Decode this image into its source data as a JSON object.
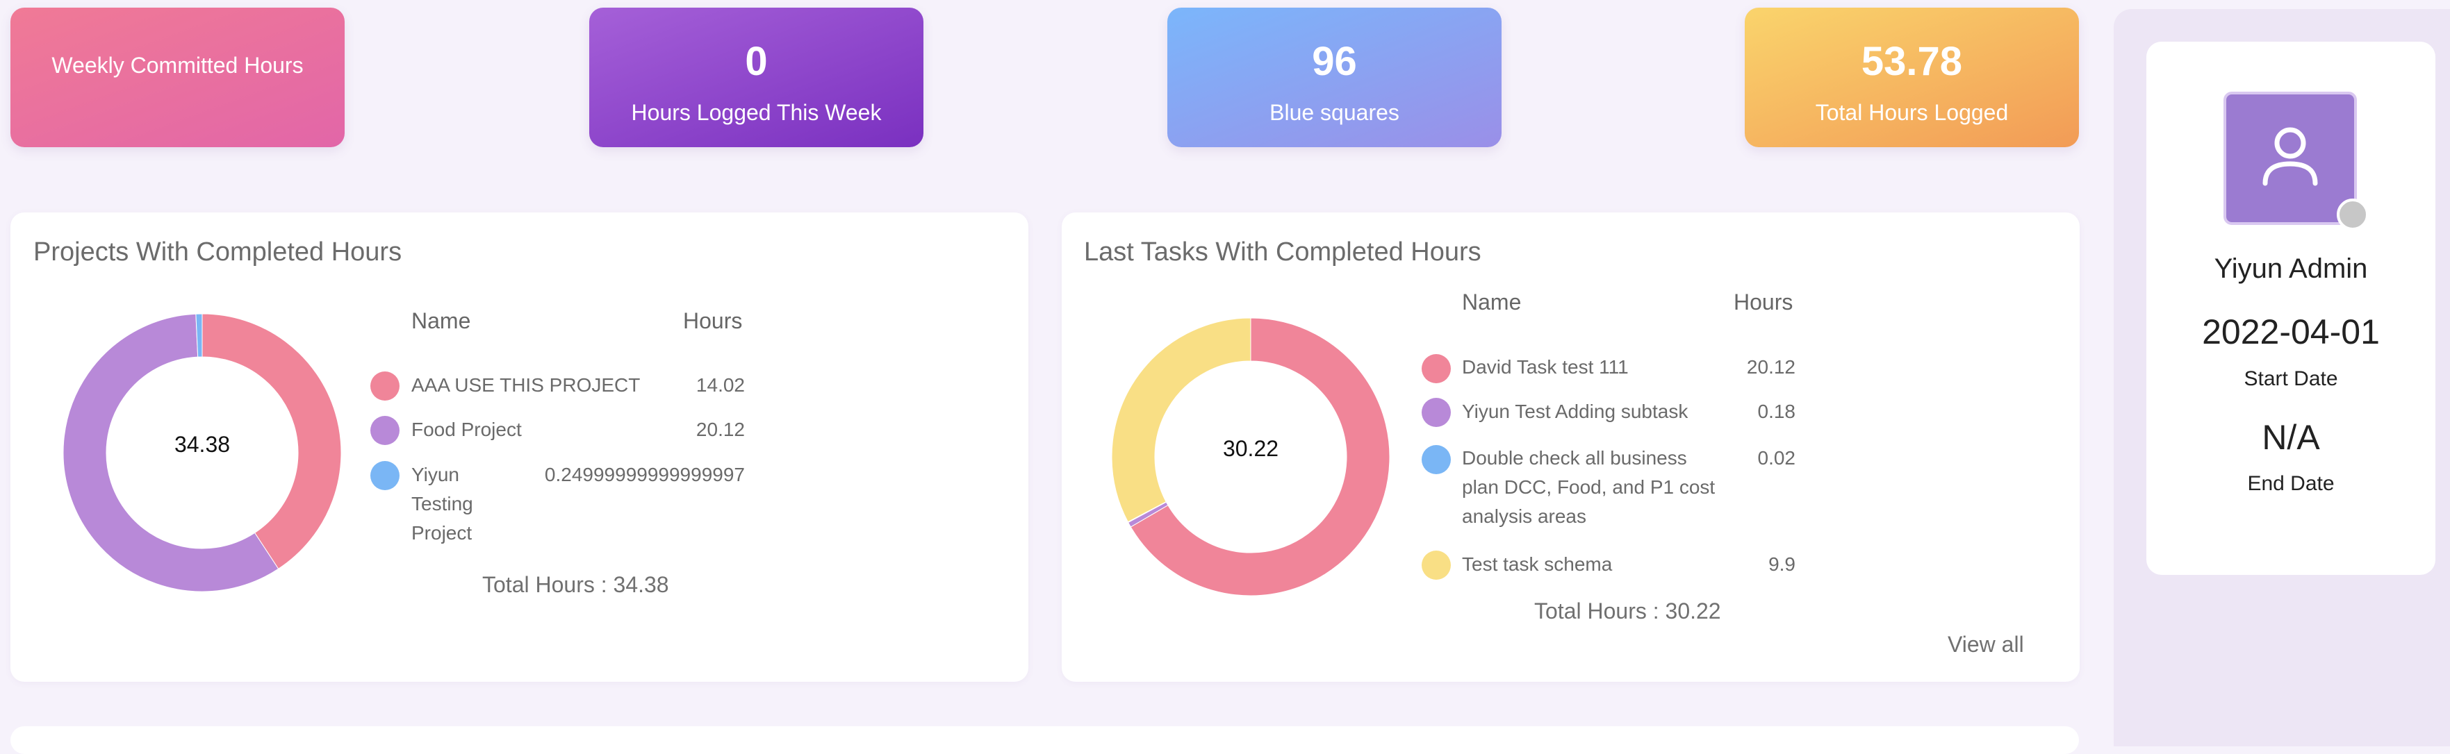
{
  "stats": {
    "weekly": {
      "label": "Weekly Committed Hours",
      "gradient": [
        "#f07a96",
        "#e266a8"
      ]
    },
    "logged_week": {
      "value": "0",
      "label": "Hours Logged This Week",
      "gradient": [
        "#a560d8",
        "#7a30c0"
      ]
    },
    "blue_squares": {
      "value": "96",
      "label": "Blue squares",
      "gradient": [
        "#7bb6fb",
        "#9a8fe8"
      ]
    },
    "total_logged": {
      "value": "53.78",
      "label": "Total Hours Logged",
      "gradient": [
        "#fad46c",
        "#f29b56"
      ]
    }
  },
  "projects": {
    "title": "Projects With Completed Hours",
    "name_header": "Name",
    "hours_header": "Hours",
    "center": "34.38",
    "total": "Total Hours : 34.38",
    "items": [
      {
        "name": "AAA USE THIS PROJECT",
        "hours": "14.02",
        "color": "#f08599"
      },
      {
        "name": "Food Project",
        "hours": "20.12",
        "color": "#b889d8"
      },
      {
        "name": "Yiyun Testing Project",
        "name_lines": [
          "Yiyun",
          "Testing",
          "Project"
        ],
        "hours": "0.24999999999999997",
        "color": "#7ab6f5"
      }
    ],
    "chart_data": {
      "type": "pie",
      "categories": [
        "AAA USE THIS PROJECT",
        "Food Project",
        "Yiyun Testing Project"
      ],
      "values": [
        14.02,
        20.12,
        0.24999999999999997
      ]
    }
  },
  "tasks": {
    "title": "Last Tasks With Completed Hours",
    "name_header": "Name",
    "hours_header": "Hours",
    "center": "30.22",
    "total": "Total Hours : 30.22",
    "view_all": "View all",
    "items": [
      {
        "name": "David Task test 111",
        "hours": "20.12",
        "color": "#f08599"
      },
      {
        "name": "Yiyun Test Adding subtask",
        "hours": "0.18",
        "color": "#b889d8"
      },
      {
        "name": "Double check all business plan DCC, Food, and P1 cost analysis areas",
        "name_lines": [
          "Double check all business",
          "plan DCC, Food, and P1 cost",
          "analysis areas"
        ],
        "hours": "0.02",
        "color": "#7ab6f5"
      },
      {
        "name": "Test task schema",
        "hours": "9.9",
        "color": "#f9df85"
      }
    ],
    "chart_data": {
      "type": "pie",
      "categories": [
        "David Task test 111",
        "Yiyun Test Adding subtask",
        "Double check all business plan DCC, Food, and P1 cost analysis areas",
        "Test task schema"
      ],
      "values": [
        20.12,
        0.18,
        0.02,
        9.9
      ]
    }
  },
  "profile": {
    "name": "Yiyun Admin",
    "start_date": "2022-04-01",
    "start_label": "Start Date",
    "end_date": "N/A",
    "end_label": "End Date",
    "avatar_icon": "user-icon",
    "status_color": "#c7c7c7"
  }
}
